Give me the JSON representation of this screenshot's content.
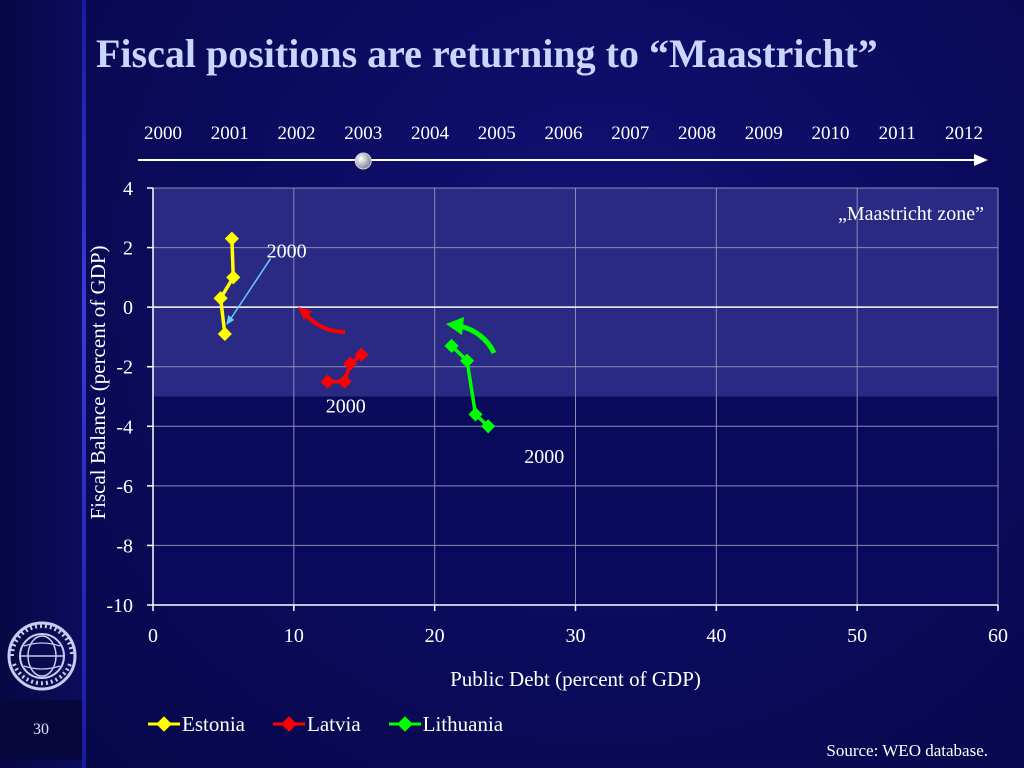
{
  "slide": {
    "title": "Fiscal positions are returning to “Maastricht”",
    "page_number": "30",
    "source": "Source: WEO database.",
    "logo_text": "INTERNATIONAL MONETARY FUND"
  },
  "timeline": {
    "years": [
      "2000",
      "2001",
      "2002",
      "2003",
      "2004",
      "2005",
      "2006",
      "2007",
      "2008",
      "2009",
      "2010",
      "2011",
      "2012"
    ],
    "current_year": "2003"
  },
  "colors": {
    "estonia": "#ffff00",
    "latvia": "#ff0000",
    "lithuania": "#00ff00",
    "zone": "#2a2a85",
    "plot_bg": "#0a0a5c",
    "grid": "#8b8bb5"
  },
  "chart_data": {
    "type": "scatter",
    "xlabel": "Public Debt (percent of GDP)",
    "ylabel": "Fiscal Balance (percent of GDP)",
    "xlim": [
      0,
      60
    ],
    "ylim": [
      -10,
      4
    ],
    "xticks": [
      0,
      10,
      20,
      30,
      40,
      50,
      60
    ],
    "yticks": [
      -10,
      -8,
      -6,
      -4,
      -2,
      0,
      2,
      4
    ],
    "grid": true,
    "legend": "bottom",
    "zone": {
      "label": "„Maastricht zone”",
      "x": [
        0,
        60
      ],
      "y": [
        -3,
        4
      ]
    },
    "series": [
      {
        "name": "Estonia",
        "x": [
          5.1,
          4.8,
          5.7,
          5.6
        ],
        "y": [
          -0.9,
          0.3,
          1.0,
          2.3
        ]
      },
      {
        "name": "Latvia",
        "x": [
          12.4,
          13.6,
          14.0,
          14.8
        ],
        "y": [
          -2.5,
          -2.5,
          -1.9,
          -1.6
        ]
      },
      {
        "name": "Lithuania",
        "x": [
          23.8,
          22.9,
          22.3,
          21.2
        ],
        "y": [
          -4.0,
          -3.6,
          -1.8,
          -1.3
        ]
      }
    ],
    "annotations": [
      {
        "text": "2000",
        "x": 9.2,
        "y": 1.9,
        "arrow_to": [
          5.2,
          -0.6
        ]
      },
      {
        "text": "2000",
        "x": 13.4,
        "y": -3.3
      },
      {
        "text": "2000",
        "x": 27.5,
        "y": -5.0
      }
    ]
  }
}
